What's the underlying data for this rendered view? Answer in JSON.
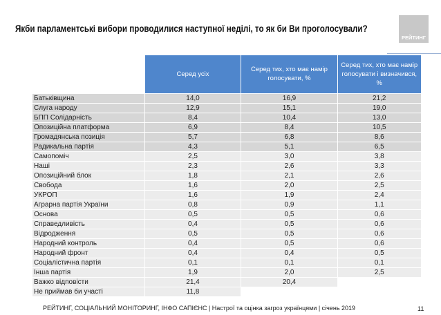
{
  "title": "Якби парламентські вибори проводилися наступної неділі, то як би Ви проголосували?",
  "logo": "РЕЙТИНГ",
  "table": {
    "headers": [
      "Серед усіх",
      "Серед тих, хто має намір голосувати, %",
      "Серед тих, хто має намір голосувати і визначився, %"
    ],
    "rows": [
      [
        "Батьківщина",
        "14,0",
        "16,9",
        "21,2"
      ],
      [
        "Слуга народу",
        "12,9",
        "15,1",
        "19,0"
      ],
      [
        "БПП Солідарність",
        "8,4",
        "10,4",
        "13,0"
      ],
      [
        "Опозиційна платформа",
        "6,9",
        "8,4",
        "10,5"
      ],
      [
        "Громадянська позиція",
        "5,7",
        "6,8",
        "8,6"
      ],
      [
        "Радикальна партія",
        "4,3",
        "5,1",
        "6,5"
      ],
      [
        "Самопоміч",
        "2,5",
        "3,0",
        "3,8"
      ],
      [
        "Наші",
        "2,3",
        "2,6",
        "3,3"
      ],
      [
        "Опозиційний блок",
        "1,8",
        "2,1",
        "2,6"
      ],
      [
        "Свобода",
        "1,6",
        "2,0",
        "2,5"
      ],
      [
        "УКРОП",
        "1,6",
        "1,9",
        "2,4"
      ],
      [
        "Аграрна партія України",
        "0,8",
        "0,9",
        "1,1"
      ],
      [
        "Основа",
        "0,5",
        "0,5",
        "0,6"
      ],
      [
        "Справедливість",
        "0,4",
        "0,5",
        "0,6"
      ],
      [
        "Відродження",
        "0,5",
        "0,5",
        "0,6"
      ],
      [
        "Народний контроль",
        "0,4",
        "0,5",
        "0,6"
      ],
      [
        "Народний фронт",
        "0,4",
        "0,4",
        "0,5"
      ],
      [
        "Соціалістична партія",
        "0,1",
        "0,1",
        "0,1"
      ],
      [
        "Інша партія",
        "1,9",
        "2,0",
        "2,5"
      ],
      [
        "Важко відповісти",
        "21,4",
        "20,4",
        null
      ],
      [
        "Не приймав би участі",
        "11,8",
        null,
        null
      ]
    ]
  },
  "footer": "РЕЙТИНГ, СОЦІАЛЬНИЙ МОНІТОРИНГ, ІНФО САПІЄНС | Настрої та оцінка загроз українцями | січень 2019",
  "page_number": "11",
  "colors": {
    "header": "#4f86cc",
    "row_dark": "#d6d6d6",
    "row_light": "#ececec"
  }
}
